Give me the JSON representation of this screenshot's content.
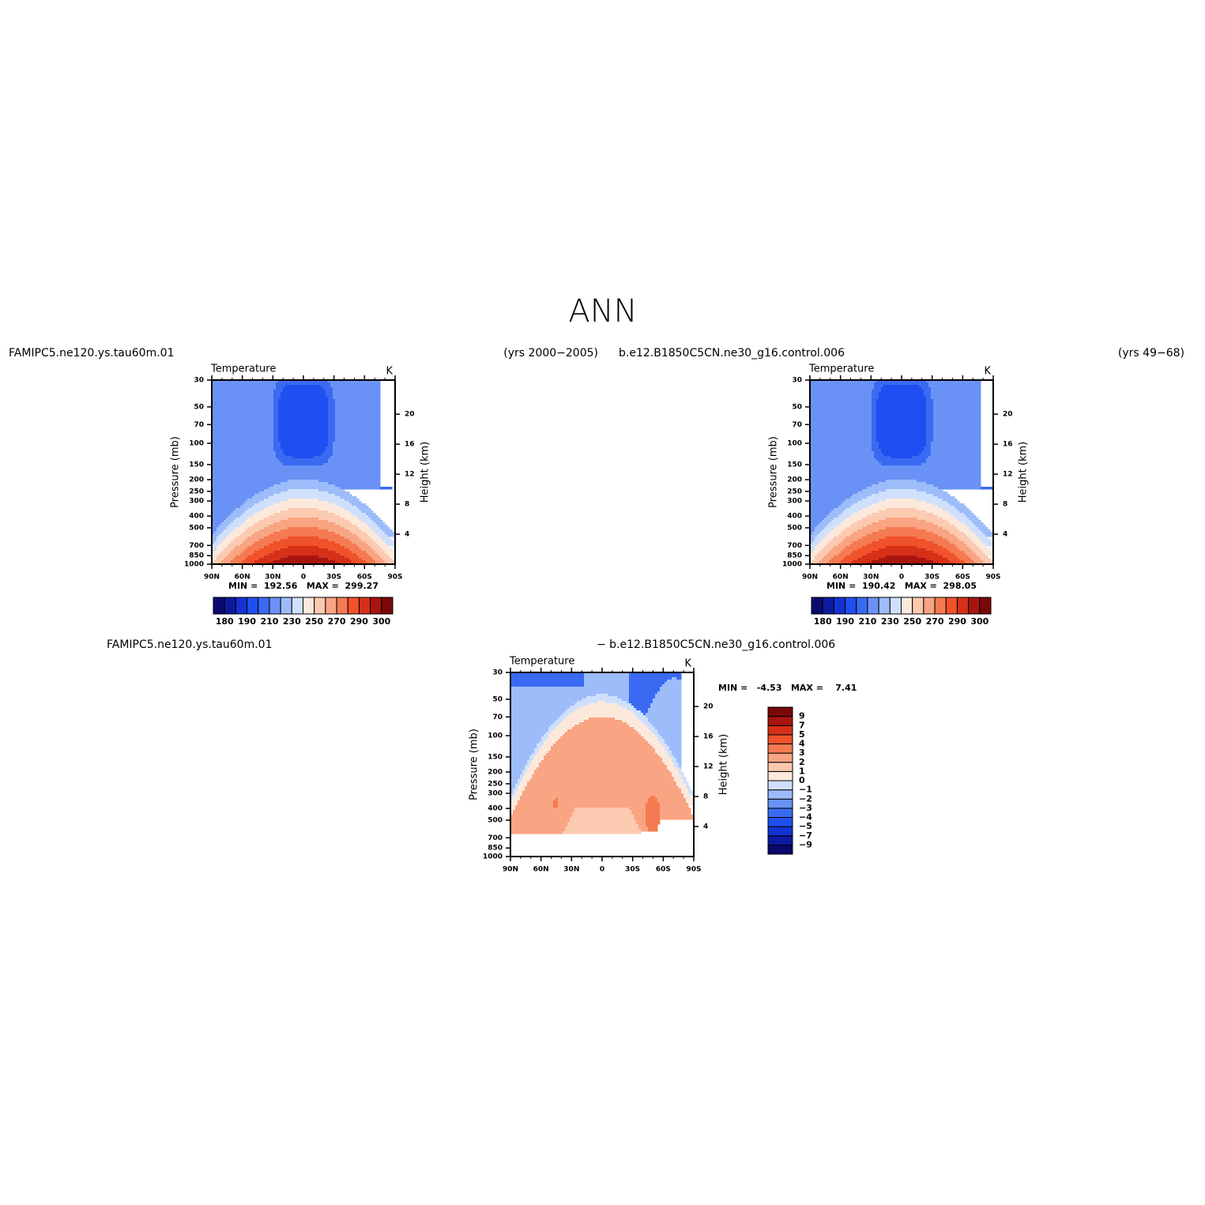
{
  "title": "ANN",
  "panels": [
    {
      "case": "FAMIPC5.ne120.ys.tau60m.01",
      "years": "(yrs 2000−2005)",
      "variable": "Temperature",
      "units": "K",
      "y_label": "Pressure  (mb)",
      "y2_label": "Height  (km)",
      "yticks": [
        30,
        50,
        70,
        100,
        150,
        200,
        250,
        300,
        400,
        500,
        700,
        850,
        1000
      ],
      "y2ticks": [
        20,
        16,
        12,
        8,
        4
      ],
      "xticks": [
        {
          "value": 90,
          "label": "90N"
        },
        {
          "value": 60,
          "label": "60N"
        },
        {
          "value": 30,
          "label": "30N"
        },
        {
          "value": 0,
          "label": "0"
        },
        {
          "value": -30,
          "label": "30S"
        },
        {
          "value": -60,
          "label": "60S"
        },
        {
          "value": -90,
          "label": "90S"
        }
      ],
      "stats": "MIN =  192.56   MAX =  299.27",
      "colorbar": {
        "labels": [
          "180",
          "190",
          "210",
          "230",
          "250",
          "270",
          "290",
          "300"
        ],
        "colors": [
          "#0a0a6e",
          "#0d1aa0",
          "#1432d2",
          "#1f4ff0",
          "#3a6af2",
          "#6a92f6",
          "#9dbcfa",
          "#cfe0fc",
          "#fde9dc",
          "#fccab0",
          "#f9a482",
          "#f57a52",
          "#f0522b",
          "#d63018",
          "#a8150f",
          "#7a0808"
        ]
      }
    },
    {
      "case": "b.e12.B1850C5CN.ne30_g16.control.006",
      "years": "(yrs 49−68)",
      "variable": "Temperature",
      "units": "K",
      "y_label": "Pressure  (mb)",
      "y2_label": "Height  (km)",
      "yticks": [
        30,
        50,
        70,
        100,
        150,
        200,
        250,
        300,
        400,
        500,
        700,
        850,
        1000
      ],
      "y2ticks": [
        20,
        16,
        12,
        8,
        4
      ],
      "xticks": [
        {
          "value": 90,
          "label": "90N"
        },
        {
          "value": 60,
          "label": "60N"
        },
        {
          "value": 30,
          "label": "30N"
        },
        {
          "value": 0,
          "label": "0"
        },
        {
          "value": -30,
          "label": "30S"
        },
        {
          "value": -60,
          "label": "60S"
        },
        {
          "value": -90,
          "label": "90S"
        }
      ],
      "stats": "MIN =  190.42   MAX =  298.05",
      "colorbar": {
        "labels": [
          "180",
          "190",
          "210",
          "230",
          "250",
          "270",
          "290",
          "300"
        ],
        "colors": [
          "#0a0a6e",
          "#0d1aa0",
          "#1432d2",
          "#1f4ff0",
          "#3a6af2",
          "#6a92f6",
          "#9dbcfa",
          "#cfe0fc",
          "#fde9dc",
          "#fccab0",
          "#f9a482",
          "#f57a52",
          "#f0522b",
          "#d63018",
          "#a8150f",
          "#7a0808"
        ]
      }
    },
    {
      "case": "FAMIPC5.ne120.ys.tau60m.01",
      "case2": "− b.e12.B1850C5CN.ne30_g16.control.006",
      "variable": "Temperature",
      "units": "K",
      "y_label": "Pressure  (mb)",
      "y2_label": "Height  (km)",
      "yticks": [
        30,
        50,
        70,
        100,
        150,
        200,
        250,
        300,
        400,
        500,
        700,
        850,
        1000
      ],
      "y2ticks": [
        20,
        16,
        12,
        8,
        4
      ],
      "xticks": [
        {
          "value": 90,
          "label": "90N"
        },
        {
          "value": 60,
          "label": "60N"
        },
        {
          "value": 30,
          "label": "30N"
        },
        {
          "value": 0,
          "label": "0"
        },
        {
          "value": -30,
          "label": "30S"
        },
        {
          "value": -60,
          "label": "60S"
        },
        {
          "value": -90,
          "label": "90S"
        }
      ],
      "stats": "MIN =   -4.53   MAX =    7.41",
      "colorbar": {
        "labels": [
          "9",
          "7",
          "5",
          "4",
          "3",
          "2",
          "1",
          "0",
          "−1",
          "−2",
          "−3",
          "−4",
          "−5",
          "−7",
          "−9"
        ],
        "colors": [
          "#0a0a6e",
          "#0d1aa0",
          "#1432d2",
          "#1f4ff0",
          "#3a6af2",
          "#6a92f6",
          "#9dbcfa",
          "#cfe0fc",
          "#fde9dc",
          "#fccab0",
          "#f9a482",
          "#f57a52",
          "#f0522b",
          "#d63018",
          "#a8150f",
          "#7a0808"
        ]
      }
    }
  ]
}
